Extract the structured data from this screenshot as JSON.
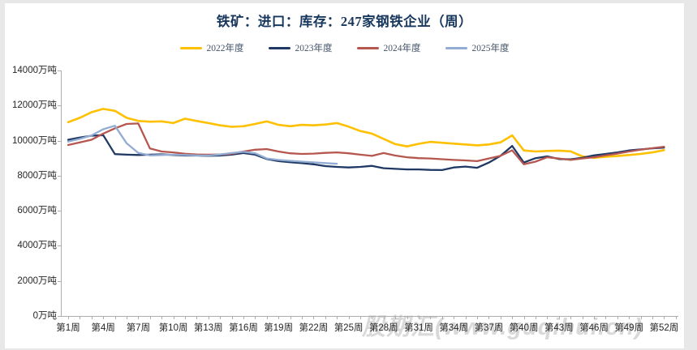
{
  "page": {
    "background": "#E8E8E8",
    "card_background": "#FFFFFF"
  },
  "header": {
    "title_prefix": "铁矿：进口：库存：",
    "title_number": "247",
    "title_suffix": "家钢铁企业（周）",
    "title_color": "#17375D"
  },
  "watermark": {
    "text": "股期汇(www.guqihui.cn)",
    "color": "#D9D9D9"
  },
  "chart_data": {
    "type": "line",
    "title": "铁矿：进口：库存：247家钢铁企业（周）",
    "unit": "万吨",
    "ylim": [
      0,
      14000
    ],
    "y_tick_values": [
      0,
      2000,
      4000,
      6000,
      8000,
      10000,
      12000,
      14000
    ],
    "y_tick_labels": [
      "0万吨",
      "2000万吨",
      "4000万吨",
      "6000万吨",
      "8000万吨",
      "10000万吨",
      "12000万吨",
      "14000万吨"
    ],
    "x_tick_weeks": [
      1,
      4,
      7,
      10,
      13,
      16,
      19,
      22,
      25,
      28,
      31,
      34,
      37,
      40,
      43,
      46,
      49,
      52
    ],
    "x_tick_labels": [
      "第1周",
      "第4周",
      "第7周",
      "第10周",
      "第13周",
      "第16周",
      "第19周",
      "第22周",
      "第25周",
      "第28周",
      "第31周",
      "第34周",
      "第37周",
      "第40周",
      "第43周",
      "第46周",
      "第49周",
      "第52周"
    ],
    "weeks_total": 52,
    "grid": false,
    "legend_position": "top",
    "axis_color": "#ADADAD",
    "tick_label_color": "#262626",
    "series": [
      {
        "name": "2022年度",
        "color": "#FFC000",
        "stroke_width": 2.6,
        "values": [
          11050,
          11300,
          11620,
          11810,
          11700,
          11300,
          11120,
          11080,
          11100,
          11000,
          11250,
          11120,
          11000,
          10870,
          10790,
          10820,
          10950,
          11100,
          10900,
          10820,
          10900,
          10870,
          10920,
          11000,
          10800,
          10550,
          10400,
          10100,
          9800,
          9670,
          9820,
          9930,
          9880,
          9830,
          9780,
          9730,
          9780,
          9900,
          10300,
          9440,
          9380,
          9410,
          9430,
          9390,
          9100,
          9020,
          9080,
          9120,
          9180,
          9240,
          9330,
          9460
        ]
      },
      {
        "name": "2023年度",
        "color": "#1F3864",
        "stroke_width": 2.3,
        "values": [
          10050,
          10180,
          10280,
          10315,
          9230,
          9200,
          9180,
          9200,
          9220,
          9180,
          9150,
          9150,
          9130,
          9150,
          9200,
          9290,
          9200,
          8950,
          8830,
          8770,
          8715,
          8650,
          8550,
          8500,
          8470,
          8500,
          8560,
          8430,
          8390,
          8360,
          8360,
          8330,
          8320,
          8470,
          8520,
          8450,
          8745,
          9130,
          9700,
          8750,
          9000,
          9100,
          8950,
          8930,
          9020,
          9160,
          9240,
          9330,
          9440,
          9500,
          9560,
          9600
        ]
      },
      {
        "name": "2024年度",
        "color": "#B5574F",
        "stroke_width": 2.3,
        "values": [
          9750,
          9900,
          10050,
          10400,
          10700,
          10950,
          10980,
          9550,
          9380,
          9330,
          9250,
          9210,
          9200,
          9210,
          9250,
          9380,
          9480,
          9520,
          9380,
          9280,
          9240,
          9260,
          9300,
          9330,
          9280,
          9200,
          9130,
          9290,
          9150,
          9050,
          9000,
          8980,
          8940,
          8900,
          8870,
          8830,
          8980,
          9130,
          9450,
          8650,
          8800,
          9050,
          8980,
          8900,
          8980,
          9050,
          9160,
          9260,
          9380,
          9480,
          9570,
          9650
        ]
      },
      {
        "name": "2025年度",
        "color": "#92ACD3",
        "stroke_width": 2.3,
        "values": [
          9950,
          10100,
          10300,
          10650,
          10850,
          9850,
          9300,
          9160,
          9180,
          9200,
          9180,
          9160,
          9150,
          9210,
          9290,
          9360,
          9280,
          8980,
          8900,
          8850,
          8800,
          8760,
          8720,
          8680
        ]
      }
    ]
  }
}
